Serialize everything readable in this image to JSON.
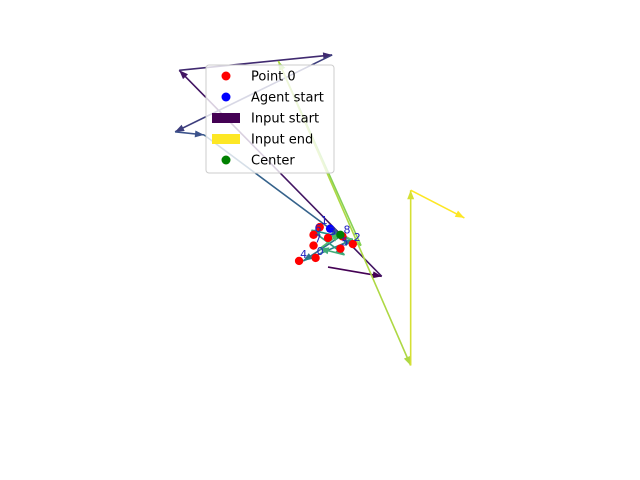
{
  "chart_data": {
    "type": "scatter",
    "title": "",
    "xlabel": "",
    "ylabel": "",
    "axes_visible": false,
    "legend": {
      "placement": "upper-left",
      "entries": [
        {
          "label": "Point 0",
          "kind": "dot",
          "color": "#ff0000"
        },
        {
          "label": "Agent start",
          "kind": "dot",
          "color": "#0000ff"
        },
        {
          "label": "Input start",
          "kind": "patch",
          "color": "#440154"
        },
        {
          "label": "Input end",
          "kind": "patch",
          "color": "#fde725"
        },
        {
          "label": "Center",
          "kind": "dot",
          "color": "#008000"
        }
      ]
    },
    "xlim": [
      -6,
      6
    ],
    "ylim": [
      -6,
      6
    ],
    "points": [
      {
        "label": "0",
        "x": -0.3,
        "y": -0.5
      },
      {
        "label": "1",
        "x": -0.2,
        "y": 0.5
      },
      {
        "label": "2",
        "x": 0.6,
        "y": -0.05
      },
      {
        "label": "3",
        "x": 0.0,
        "y": 0.15
      },
      {
        "label": "4",
        "x": -0.7,
        "y": -0.6
      },
      {
        "label": "5",
        "x": 0.3,
        "y": -0.2
      },
      {
        "label": "6",
        "x": -0.35,
        "y": 0.25
      },
      {
        "label": "7",
        "x": -0.35,
        "y": -0.1
      },
      {
        "label": "8",
        "x": 0.35,
        "y": 0.2
      }
    ],
    "agent_start": {
      "x": 0.05,
      "y": 0.45
    },
    "center": {
      "x": 0.3,
      "y": 0.25
    },
    "input_path": [
      {
        "x": 0.0,
        "y": -0.8
      },
      {
        "x": 1.3,
        "y": -1.1
      },
      {
        "x": -3.6,
        "y": 5.6
      },
      {
        "x": 0.1,
        "y": 6.1
      },
      {
        "x": -3.7,
        "y": 3.6
      },
      {
        "x": -3.0,
        "y": 3.5
      },
      {
        "x": 0.3,
        "y": 0.2
      },
      {
        "x": -0.6,
        "y": -0.6
      },
      {
        "x": 0.6,
        "y": 0.1
      },
      {
        "x": -0.4,
        "y": 0.4
      },
      {
        "x": 0.4,
        "y": -0.4
      },
      {
        "x": -0.2,
        "y": -0.2
      },
      {
        "x": 0.3,
        "y": 0.3
      },
      {
        "x": 0.8,
        "y": -0.1
      },
      {
        "x": -1.2,
        "y": 5.9
      },
      {
        "x": 2.0,
        "y": -4.0
      },
      {
        "x": 2.0,
        "y": 1.7
      },
      {
        "x": 3.3,
        "y": 0.8
      }
    ]
  }
}
